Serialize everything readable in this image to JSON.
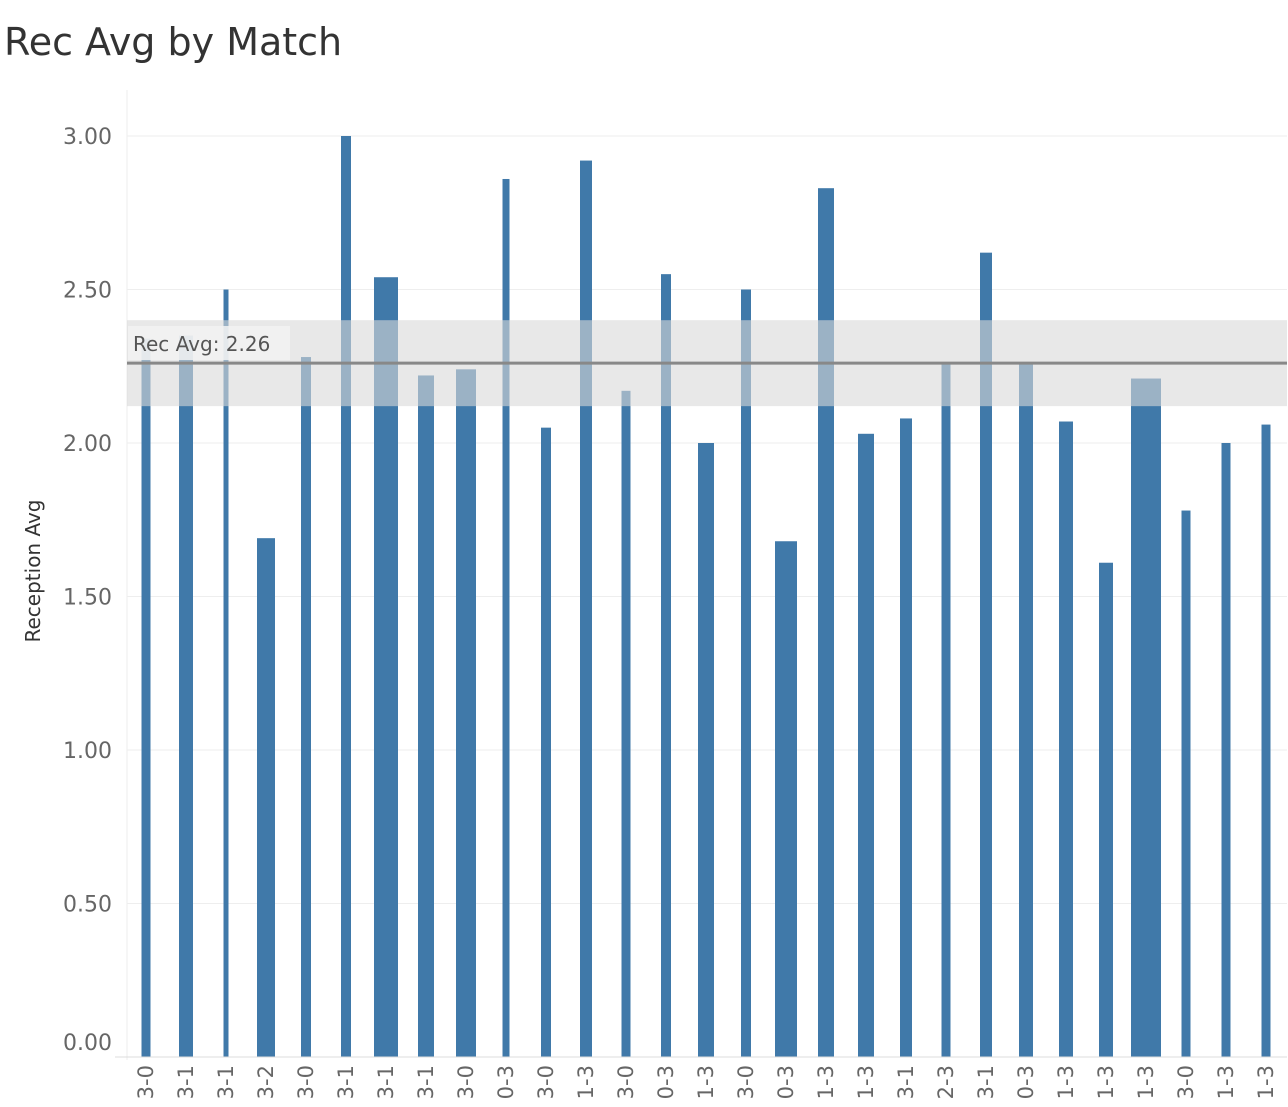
{
  "title": "Rec Avg by Match",
  "chart_data": {
    "type": "bar",
    "title": "Rec Avg by Match",
    "xlabel": "",
    "ylabel": "Reception Avg",
    "ylim": [
      0,
      3.15
    ],
    "yticks": [
      "0.00",
      "0.50",
      "1.00",
      "1.50",
      "2.00",
      "2.50",
      "3.00"
    ],
    "grid": true,
    "color": "#4079a9",
    "categories": [
      "3-0",
      "3-1",
      "3-1",
      "3-2",
      "3-0",
      "3-1",
      "3-1",
      "3-1",
      "3-0",
      "0-3",
      "3-0",
      "1-3",
      "3-0",
      "0-3",
      "1-3",
      "3-0",
      "0-3",
      "1-3",
      "1-3",
      "3-1",
      "2-3",
      "3-1",
      "0-3",
      "1-3",
      "1-3",
      "1-3",
      "3-0",
      "1-3",
      "1-3"
    ],
    "values": [
      2.34,
      2.35,
      2.5,
      1.69,
      2.28,
      3.0,
      2.54,
      2.22,
      2.24,
      2.86,
      2.05,
      2.92,
      2.17,
      2.55,
      2.0,
      2.5,
      1.68,
      2.83,
      2.03,
      2.08,
      2.26,
      2.62,
      2.26,
      2.07,
      1.61,
      2.21,
      1.78,
      2.0,
      2.06
    ],
    "reference_line": {
      "label": "Rec Avg: 2.26",
      "value": 2.26,
      "band": [
        2.12,
        2.4
      ]
    }
  }
}
